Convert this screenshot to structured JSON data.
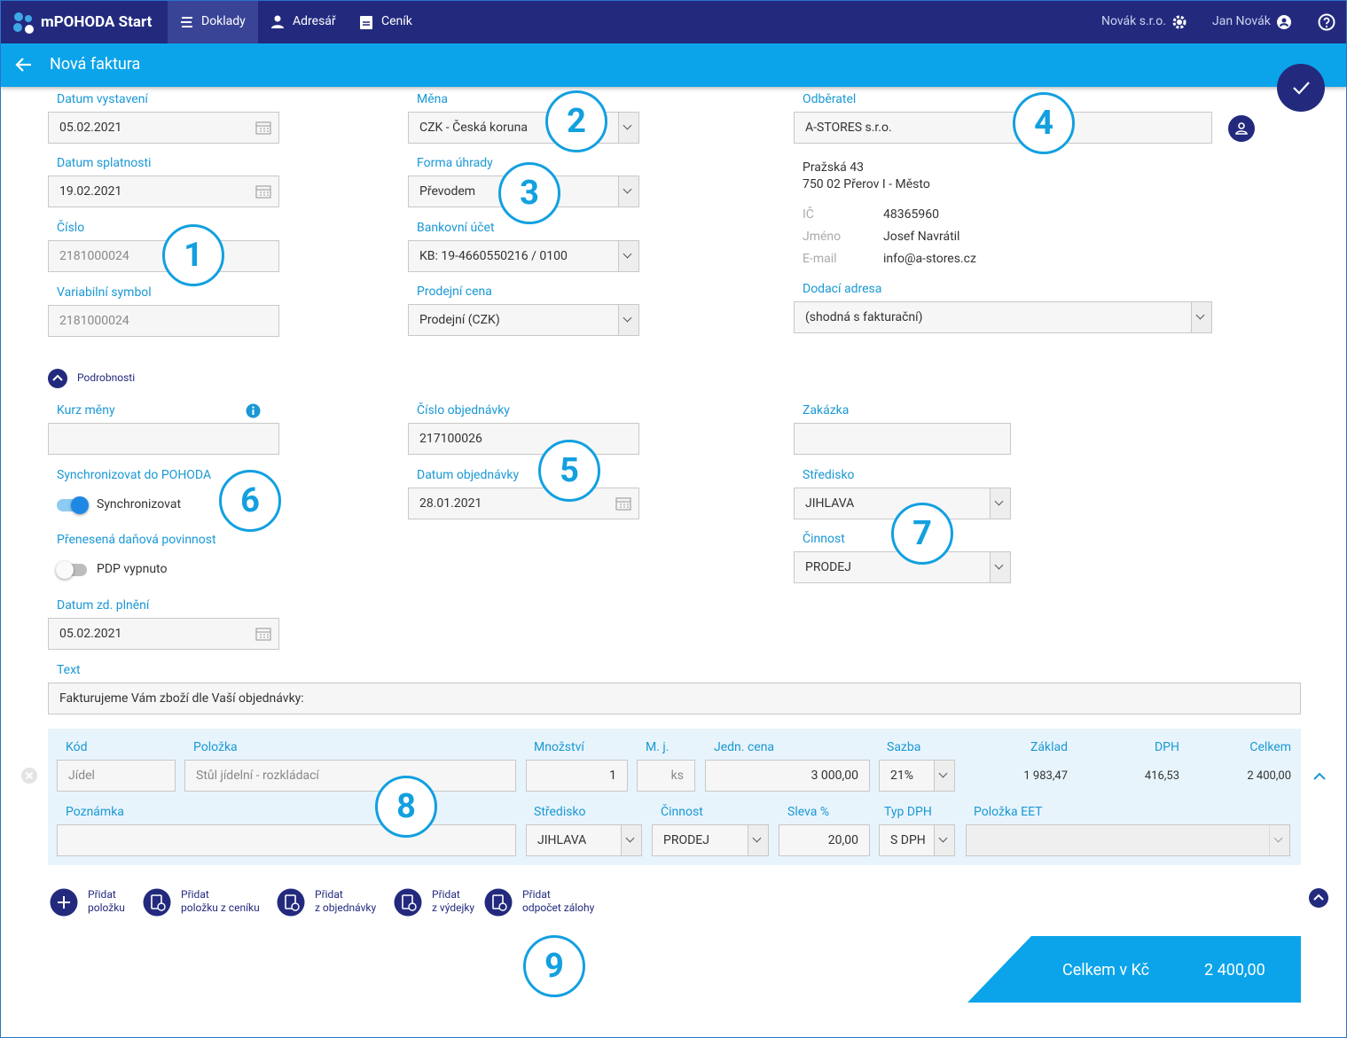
{
  "nav": {
    "brand": "mPOHODA Start",
    "tabs": [
      "Doklady",
      "Adresář",
      "Ceník"
    ],
    "company": "Novák s.r.o.",
    "user": "Jan Novák"
  },
  "header": {
    "title": "Nová faktura"
  },
  "fields": [
    {
      "label": "Datum vystavení",
      "value": "05.02.2021"
    },
    {
      "label": "Datum splatnosti",
      "value": "19.02.2021"
    },
    {
      "label": "Číslo",
      "value": "2181000024"
    },
    {
      "label": "Variabilní symbol",
      "value": "2181000024"
    },
    {
      "label": "Měna",
      "value": "CZK - Česká koruna"
    },
    {
      "label": "Forma úhrady",
      "value": "Převodem"
    },
    {
      "label": "Bankovní účet",
      "value": "KB: 19-4660550216 / 0100"
    },
    {
      "label": "Prodejní cena",
      "value": "Prodejní (CZK)"
    },
    {
      "label": "Dodací adresa",
      "value": "(shodná s fakturační)"
    },
    {
      "label": "Kurz měny"
    },
    {
      "label": "Číslo objednávky",
      "value": "217100026"
    },
    {
      "label": "Zakázka"
    },
    {
      "label": "Datum objednávky",
      "value": "28.01.2021"
    },
    {
      "label": "Středisko",
      "value": "JIHLAVA"
    },
    {
      "label": "Činnost",
      "value": "PRODEJ"
    },
    {
      "label": "Datum zd. plnění",
      "value": "05.02.2021"
    },
    {
      "label": "Text",
      "value": "Fakturujeme Vám zboží dle Vaší objednávky:"
    }
  ],
  "customer": {
    "label": "Odběratel",
    "name": "A-STORES s.r.o.",
    "address": [
      "Pražská 43",
      "750 02 Přerov I - Město"
    ],
    "details": [
      {
        "label": "IČ",
        "value": "48365960"
      },
      {
        "label": "Jméno",
        "value": "Josef Navrátil"
      },
      {
        "label": "E-mail",
        "value": "info@a-stores.cz"
      }
    ]
  },
  "details_toggle": "Podrobnosti",
  "toggles": [
    {
      "label": "Synchronizovat do POHODA",
      "text": "Synchronizovat",
      "on": true
    },
    {
      "label": "Přenesená daňová povinnost",
      "text": "PDP vypnuto",
      "on": false
    }
  ],
  "item": [
    {
      "label": "Kód",
      "value": "Jídel"
    },
    {
      "label": "Položka",
      "value": "Stůl jídelní - rozkládací"
    },
    {
      "label": "Množství",
      "value": "1"
    },
    {
      "label": "M. j.",
      "value": "ks"
    },
    {
      "label": "Jedn. cena",
      "value": "3 000,00"
    },
    {
      "label": "Sazba",
      "value": "21%"
    },
    {
      "label": "Základ",
      "value": "1 983,47"
    },
    {
      "label": "DPH",
      "value": "416,53"
    },
    {
      "label": "Celkem",
      "value": "2 400,00"
    },
    {
      "label": "Poznámka"
    },
    {
      "label": "Středisko",
      "value": "JIHLAVA"
    },
    {
      "label": "Činnost",
      "value": "PRODEJ"
    },
    {
      "label": "Sleva %",
      "value": "20,00"
    },
    {
      "label": "Typ DPH",
      "value": "S DPH"
    },
    {
      "label": "Položka EET"
    }
  ],
  "actions": [
    [
      "Přidat",
      "položku"
    ],
    [
      "Přidat",
      "položku z ceníku"
    ],
    [
      "Přidat",
      "z objednávky"
    ],
    [
      "Přidat",
      "z výdejky"
    ],
    [
      "Přidat",
      "odpočet zálohy"
    ]
  ],
  "total": {
    "label": "Celkem v Kč",
    "value": "2 400,00"
  },
  "callouts": [
    "1",
    "2",
    "3",
    "4",
    "5",
    "6",
    "7",
    "8",
    "9"
  ]
}
